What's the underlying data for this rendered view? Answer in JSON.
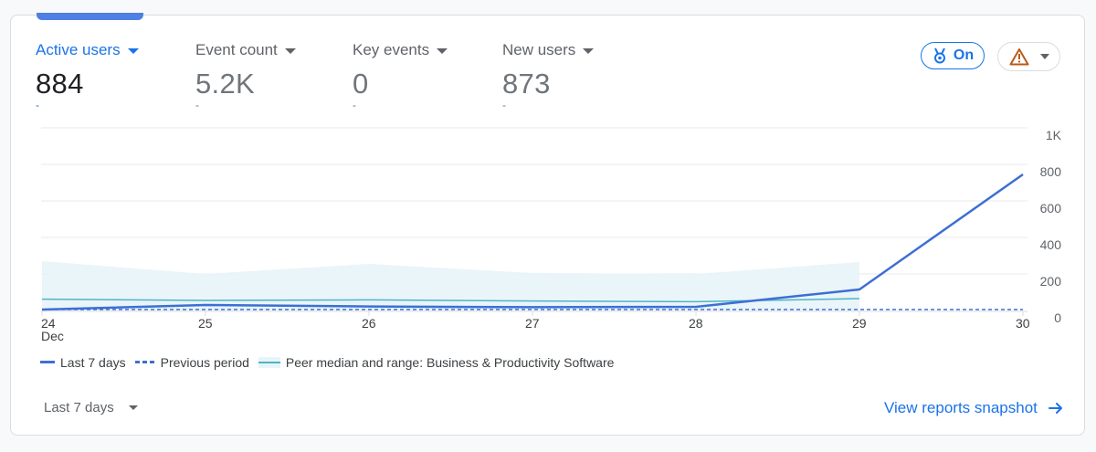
{
  "metrics": [
    {
      "label": "Active users",
      "value": "884",
      "delta": "-"
    },
    {
      "label": "Event count",
      "value": "5.2K",
      "delta": "-"
    },
    {
      "label": "Key events",
      "value": "0",
      "delta": "-"
    },
    {
      "label": "New users",
      "value": "873",
      "delta": "-"
    }
  ],
  "badge": {
    "label": "On"
  },
  "legend": {
    "last7": "Last 7 days",
    "previous": "Previous period",
    "peer": "Peer median and range: Business & Productivity Software"
  },
  "footer": {
    "range_label": "Last 7 days",
    "snapshot_link": "View reports snapshot"
  },
  "colors": {
    "accent": "#1a73e8",
    "line": "#3d6fd3",
    "peer_line": "#4fb3c9",
    "peer_band": "#e8f4f8",
    "warning": "#c5221f"
  },
  "icons": {
    "badge": "medal-icon",
    "alert": "warning-triangle-icon",
    "link": "arrow-right-icon"
  },
  "chart_data": {
    "type": "line",
    "x": [
      "24",
      "25",
      "26",
      "27",
      "28",
      "29",
      "30"
    ],
    "x_sublabel": {
      "24": "Dec"
    },
    "yticks": [
      "0",
      "200",
      "400",
      "600",
      "800",
      "1K"
    ],
    "ylim": [
      0,
      1000
    ],
    "grid": true,
    "legend_position": "bottom-left",
    "series": [
      {
        "name": "Last 7 days",
        "style": "solid",
        "values": [
          5,
          30,
          22,
          18,
          20,
          115,
          745
        ]
      },
      {
        "name": "Previous period",
        "style": "dashed",
        "values": [
          5,
          5,
          5,
          5,
          5,
          5,
          5
        ]
      },
      {
        "name": "Peer median and range: Business & Productivity Software",
        "style": "band",
        "median": [
          62,
          55,
          58,
          52,
          48,
          65
        ],
        "range_low": [
          0,
          0,
          0,
          0,
          0,
          0
        ],
        "range_high": [
          270,
          200,
          255,
          205,
          200,
          265
        ]
      }
    ]
  }
}
